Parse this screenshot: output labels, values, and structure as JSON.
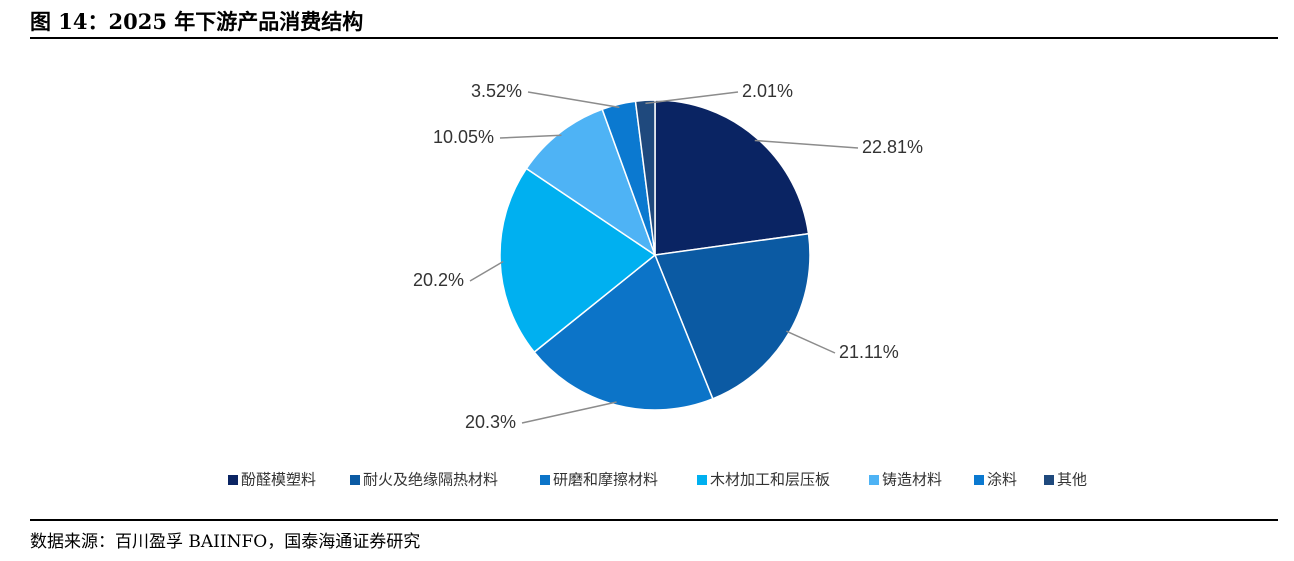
{
  "title": "图 14：2025 年下游产品消费结构",
  "source": "数据来源：百川盈孚 BAIINFO，国泰海通证券研究",
  "chart_data": {
    "type": "pie",
    "title": "",
    "slices": [
      {
        "name": "酚醛模塑料",
        "value": 22.81,
        "label": "22.81%",
        "color": "#0A2463"
      },
      {
        "name": "耐火及绝缘隔热材料",
        "value": 21.11,
        "label": "21.11%",
        "color": "#0B5AA3"
      },
      {
        "name": "研磨和摩擦材料",
        "value": 20.3,
        "label": "20.3%",
        "color": "#0C74C8"
      },
      {
        "name": "木材加工和层压板",
        "value": 20.2,
        "label": "20.2%",
        "color": "#00B0F0"
      },
      {
        "name": "铸造材料",
        "value": 10.05,
        "label": "10.05%",
        "color": "#4EB3F5"
      },
      {
        "name": "涂料",
        "value": 3.52,
        "label": "3.52%",
        "color": "#0B79D0"
      },
      {
        "name": "其他",
        "value": 2.01,
        "label": "2.01%",
        "color": "#1F497D"
      }
    ],
    "start": "12 o'clock",
    "direction": "clockwise",
    "legend_position": "bottom"
  }
}
